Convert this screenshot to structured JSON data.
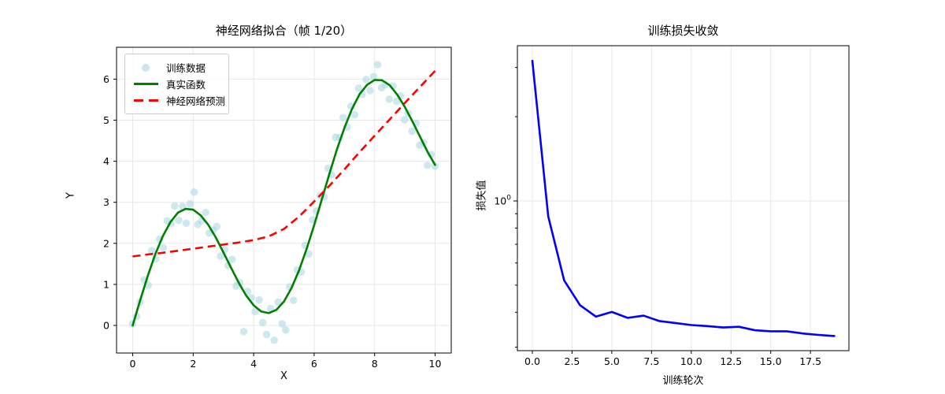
{
  "figure": {
    "left_plot": {
      "title": "神经网络拟合（帧 1/20）",
      "xlabel": "X",
      "ylabel": "Y",
      "x_ticks": [
        0,
        2,
        4,
        6,
        8,
        10
      ],
      "x_tick_labels": [
        "0",
        "2",
        "4",
        "6",
        "8",
        "10"
      ],
      "y_ticks": [
        0,
        1,
        2,
        3,
        4,
        5,
        6
      ],
      "y_tick_labels": [
        "0",
        "1",
        "2",
        "3",
        "4",
        "5",
        "6"
      ],
      "legend": [
        {
          "label": "训练数据",
          "type": "scatter",
          "color": "#add8e6"
        },
        {
          "label": "真实函数",
          "type": "line",
          "color": "#008000"
        },
        {
          "label": "神经网络预测",
          "type": "dashed",
          "color": "#ff0000"
        }
      ]
    },
    "right_plot": {
      "title": "训练损失收敛",
      "xlabel": "训练轮次",
      "ylabel": "损失值",
      "x_ticks": [
        0,
        2.5,
        5,
        7.5,
        10,
        12.5,
        15,
        17.5
      ],
      "x_tick_labels": [
        "0.0",
        "2.5",
        "5.0",
        "7.5",
        "10.0",
        "12.5",
        "15.0",
        "17.5"
      ],
      "y_major_tick": {
        "base": "10",
        "exp": "0",
        "value": 1
      },
      "y_minor_ticks": [
        3,
        2,
        0.9,
        0.8,
        0.7,
        0.6,
        0.5,
        0.4,
        0.3
      ],
      "yscale": "log"
    },
    "colors": {
      "scatter": "#add8e6",
      "true_function": "#008000",
      "nn_prediction": "#ff0000",
      "loss_curve": "#0000ff",
      "grid": "#e7e7e7",
      "spine": "#000000"
    }
  },
  "chart_data": [
    {
      "type": "scatter",
      "title": "神经网络拟合（帧 1/20）",
      "xlabel": "X",
      "ylabel": "Y",
      "xlim": [
        -0.5,
        10.5
      ],
      "ylim": [
        -0.67,
        6.75
      ],
      "grid": true,
      "legend_position": "upper left",
      "series": [
        {
          "name": "训练数据",
          "type": "scatter",
          "color": "#add8e6",
          "alpha": 0.6,
          "points": [
            [
              0.0,
              0.04
            ],
            [
              0.13,
              0.22
            ],
            [
              0.25,
              0.57
            ],
            [
              0.38,
              1.11
            ],
            [
              0.51,
              0.98
            ],
            [
              0.63,
              1.82
            ],
            [
              0.76,
              1.62
            ],
            [
              0.89,
              2.1
            ],
            [
              1.01,
              1.89
            ],
            [
              1.14,
              2.55
            ],
            [
              1.27,
              2.48
            ],
            [
              1.39,
              2.91
            ],
            [
              1.52,
              2.56
            ],
            [
              1.65,
              2.9
            ],
            [
              1.77,
              2.49
            ],
            [
              1.9,
              2.96
            ],
            [
              2.03,
              3.25
            ],
            [
              2.15,
              2.46
            ],
            [
              2.28,
              2.55
            ],
            [
              2.41,
              2.75
            ],
            [
              2.53,
              2.25
            ],
            [
              2.66,
              2.32
            ],
            [
              2.78,
              2.41
            ],
            [
              2.91,
              1.69
            ],
            [
              3.04,
              1.85
            ],
            [
              3.16,
              1.46
            ],
            [
              3.29,
              1.61
            ],
            [
              3.42,
              0.96
            ],
            [
              3.54,
              1.04
            ],
            [
              3.67,
              -0.15
            ],
            [
              3.8,
              0.83
            ],
            [
              3.92,
              0.67
            ],
            [
              4.05,
              0.34
            ],
            [
              4.18,
              0.62
            ],
            [
              4.3,
              0.07
            ],
            [
              4.43,
              -0.22
            ],
            [
              4.56,
              0.41
            ],
            [
              4.68,
              -0.36
            ],
            [
              4.81,
              0.57
            ],
            [
              4.94,
              0.04
            ],
            [
              5.06,
              -0.11
            ],
            [
              5.19,
              0.94
            ],
            [
              5.32,
              0.61
            ],
            [
              5.44,
              1.35
            ],
            [
              5.57,
              1.3
            ],
            [
              5.7,
              1.95
            ],
            [
              5.82,
              1.74
            ],
            [
              5.95,
              2.57
            ],
            [
              6.08,
              2.79
            ],
            [
              6.2,
              3.16
            ],
            [
              6.33,
              3.13
            ],
            [
              6.46,
              3.83
            ],
            [
              6.58,
              3.67
            ],
            [
              6.71,
              4.58
            ],
            [
              6.84,
              4.58
            ],
            [
              6.96,
              5.06
            ],
            [
              7.09,
              4.83
            ],
            [
              7.22,
              5.34
            ],
            [
              7.34,
              5.13
            ],
            [
              7.47,
              5.78
            ],
            [
              7.59,
              5.63
            ],
            [
              7.72,
              5.99
            ],
            [
              7.85,
              5.72
            ],
            [
              7.97,
              6.06
            ],
            [
              8.1,
              6.35
            ],
            [
              8.23,
              5.79
            ],
            [
              8.35,
              5.86
            ],
            [
              8.48,
              5.51
            ],
            [
              8.61,
              5.83
            ],
            [
              8.73,
              5.46
            ],
            [
              8.86,
              5.59
            ],
            [
              8.99,
              5.01
            ],
            [
              9.11,
              5.17
            ],
            [
              9.24,
              4.73
            ],
            [
              9.37,
              4.92
            ],
            [
              9.49,
              4.39
            ],
            [
              9.62,
              4.45
            ],
            [
              9.75,
              3.9
            ],
            [
              9.87,
              4.16
            ],
            [
              10.0,
              3.88
            ]
          ]
        },
        {
          "name": "真实函数",
          "type": "line",
          "color": "#008000",
          "linewidth": 2.5,
          "x": [
            0,
            0.25,
            0.5,
            0.75,
            1,
            1.25,
            1.5,
            1.75,
            2,
            2.25,
            2.5,
            2.75,
            3,
            3.25,
            3.5,
            3.75,
            4,
            4.25,
            4.5,
            4.75,
            5,
            5.25,
            5.5,
            5.75,
            6,
            6.25,
            6.5,
            6.75,
            7,
            7.25,
            7.5,
            7.75,
            8,
            8.25,
            8.5,
            8.75,
            9,
            9.25,
            9.5,
            9.75,
            10
          ],
          "y": [
            0.0,
            0.62,
            1.21,
            1.74,
            2.18,
            2.52,
            2.75,
            2.84,
            2.82,
            2.68,
            2.45,
            2.14,
            1.78,
            1.41,
            1.05,
            0.73,
            0.49,
            0.34,
            0.3,
            0.38,
            0.58,
            0.91,
            1.34,
            1.86,
            2.44,
            3.06,
            3.68,
            4.28,
            4.81,
            5.27,
            5.63,
            5.86,
            5.98,
            5.97,
            5.85,
            5.62,
            5.32,
            4.97,
            4.6,
            4.23,
            3.91
          ]
        },
        {
          "name": "神经网络预测",
          "type": "dashed-line",
          "color": "#ff0000",
          "linewidth": 2.5,
          "x": [
            0,
            0.5,
            1,
            1.5,
            2,
            2.5,
            3,
            3.5,
            4,
            4.5,
            5,
            5.5,
            6,
            6.5,
            7,
            7.5,
            8,
            8.5,
            9,
            9.5,
            10
          ],
          "y": [
            1.68,
            1.73,
            1.77,
            1.82,
            1.87,
            1.92,
            1.97,
            2.02,
            2.08,
            2.17,
            2.35,
            2.65,
            3.02,
            3.4,
            3.8,
            4.22,
            4.62,
            5.02,
            5.42,
            5.81,
            6.2
          ]
        }
      ]
    },
    {
      "type": "line",
      "title": "训练损失收敛",
      "xlabel": "训练轮次",
      "ylabel": "损失值",
      "yscale": "log",
      "xlim": [
        -0.95,
        19.95
      ],
      "ylim": [
        0.29,
        3.6
      ],
      "grid": true,
      "color": "#0000ff",
      "linewidth": 2.5,
      "x": [
        0,
        1,
        2,
        3,
        4,
        5,
        6,
        7,
        8,
        9,
        10,
        11,
        12,
        13,
        14,
        15,
        16,
        17,
        18,
        19
      ],
      "y": [
        3.17,
        0.88,
        0.52,
        0.424,
        0.386,
        0.401,
        0.382,
        0.389,
        0.372,
        0.366,
        0.36,
        0.357,
        0.353,
        0.355,
        0.345,
        0.342,
        0.342,
        0.336,
        0.332,
        0.329
      ]
    }
  ]
}
